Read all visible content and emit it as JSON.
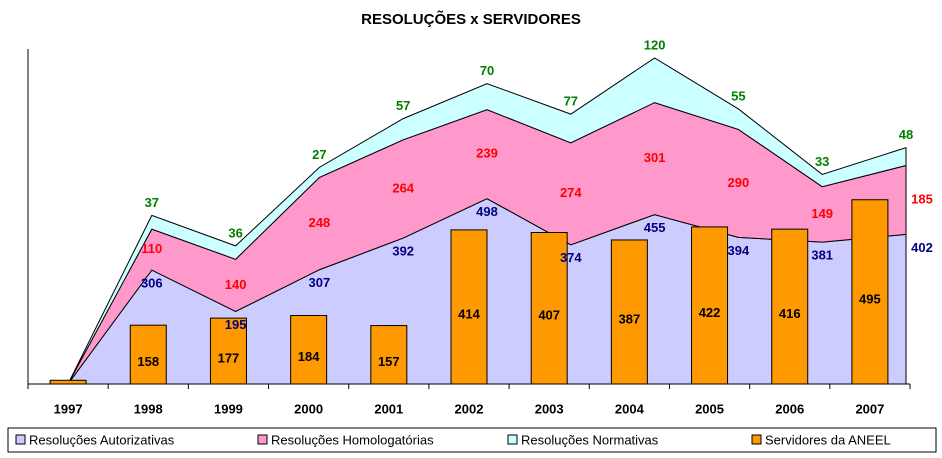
{
  "chart_data": {
    "type": "area",
    "title": "RESOLUÇÕES x SERVIDORES",
    "categories": [
      "1997",
      "1998",
      "1999",
      "2000",
      "2001",
      "2002",
      "2003",
      "2004",
      "2005",
      "2006",
      "2007"
    ],
    "ylim": [
      0,
      900
    ],
    "series": [
      {
        "name": "Resoluções Autorizativas",
        "type": "area",
        "color": "#ccccff",
        "label_color": "#000080",
        "values": [
          0,
          306,
          195,
          307,
          392,
          498,
          374,
          455,
          394,
          381,
          402
        ],
        "value_labels": [
          null,
          "306",
          "195",
          "307",
          "392",
          "498",
          "374",
          "455",
          "394",
          "381",
          "402"
        ]
      },
      {
        "name": "Resoluções Homologatórias",
        "type": "area",
        "color": "#ff99cc",
        "label_color": "#ff0000",
        "values": [
          0,
          110,
          140,
          248,
          264,
          239,
          274,
          301,
          290,
          149,
          185
        ],
        "value_labels": [
          null,
          "110",
          "140",
          "248",
          "264",
          "239",
          "274",
          "301",
          "290",
          "149",
          "185"
        ]
      },
      {
        "name": "Resoluções Normativas",
        "type": "area",
        "color": "#ccffff",
        "label_color": "#008000",
        "values": [
          0,
          37,
          36,
          27,
          57,
          70,
          77,
          120,
          55,
          33,
          48
        ],
        "value_labels": [
          null,
          "37",
          "36",
          "27",
          "57",
          "70",
          "77",
          "120",
          "55",
          "33",
          "48"
        ]
      },
      {
        "name": "Servidores da ANEEL",
        "type": "bar",
        "color": "#ff9900",
        "label_color": "#000000",
        "values": [
          10,
          158,
          177,
          184,
          157,
          414,
          407,
          387,
          422,
          416,
          495
        ],
        "value_labels": [
          null,
          "158",
          "177",
          "184",
          "157",
          "414",
          "407",
          "387",
          "422",
          "416",
          "495"
        ]
      }
    ]
  }
}
